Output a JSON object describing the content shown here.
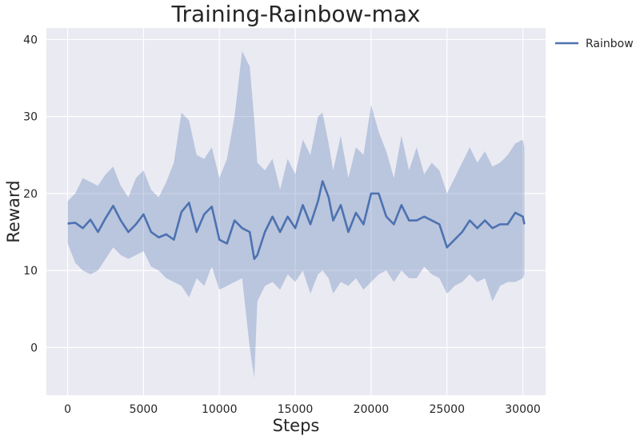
{
  "chart_data": {
    "type": "line",
    "title": "Training-Rainbow-max",
    "xlabel": "Steps",
    "ylabel": "Reward",
    "xlim": [
      -1400,
      31500
    ],
    "ylim": [
      -6.2,
      41.5
    ],
    "xticks": [
      0,
      5000,
      10000,
      15000,
      20000,
      25000,
      30000
    ],
    "yticks": [
      0,
      10,
      20,
      30,
      40
    ],
    "grid": true,
    "legend_position": "outside-top-right",
    "colors": {
      "background": "#eaeaf2",
      "grid": "#ffffff",
      "line": "#4c72b0",
      "band": "#4c72b0"
    },
    "series": [
      {
        "name": "Rainbow",
        "x": [
          0,
          500,
          1000,
          1500,
          2000,
          2500,
          3000,
          3500,
          4000,
          4500,
          5000,
          5500,
          6000,
          6500,
          7000,
          7500,
          8000,
          8500,
          9000,
          9500,
          10000,
          10500,
          11000,
          11500,
          12000,
          12300,
          12500,
          13000,
          13500,
          14000,
          14500,
          15000,
          15500,
          16000,
          16500,
          16800,
          17200,
          17500,
          18000,
          18500,
          19000,
          19500,
          20000,
          20500,
          21000,
          21500,
          22000,
          22500,
          23000,
          23500,
          24000,
          24500,
          25000,
          25500,
          26000,
          26500,
          27000,
          27500,
          28000,
          28500,
          29000,
          29500,
          30000,
          30100
        ],
        "mean": [
          16.1,
          16.2,
          15.5,
          16.6,
          15.0,
          16.8,
          18.4,
          16.5,
          15.0,
          16.0,
          17.3,
          15.0,
          14.3,
          14.7,
          14.0,
          17.6,
          18.8,
          15.0,
          17.3,
          18.3,
          14.0,
          13.5,
          16.5,
          15.5,
          15.0,
          11.5,
          12.0,
          15.0,
          17.0,
          15.0,
          17.0,
          15.5,
          18.5,
          16.0,
          19.0,
          21.6,
          19.5,
          16.5,
          18.5,
          15.0,
          17.5,
          16.0,
          20.0,
          20.0,
          17.0,
          16.0,
          18.5,
          16.5,
          16.5,
          17.0,
          16.5,
          16.0,
          13.0,
          14.0,
          15.0,
          16.5,
          15.5,
          16.5,
          15.5,
          16.0,
          16.0,
          17.5,
          17.0,
          16.0
        ],
        "lower": [
          13.5,
          11.0,
          10.0,
          9.5,
          10.0,
          11.5,
          13.0,
          12.0,
          11.5,
          12.0,
          12.5,
          10.5,
          10.0,
          9.0,
          8.5,
          8.0,
          6.5,
          9.0,
          8.0,
          10.5,
          7.5,
          8.0,
          8.5,
          9.0,
          0.0,
          -4.0,
          6.0,
          8.0,
          8.5,
          7.5,
          9.5,
          8.5,
          10.0,
          7.0,
          9.5,
          10.0,
          9.0,
          7.0,
          8.5,
          8.0,
          9.0,
          7.5,
          8.5,
          9.5,
          10.0,
          8.5,
          10.0,
          9.0,
          9.0,
          10.5,
          9.5,
          9.0,
          7.0,
          8.0,
          8.5,
          9.5,
          8.5,
          9.0,
          6.0,
          8.0,
          8.5,
          8.5,
          9.0,
          9.5
        ],
        "upper": [
          19.0,
          20.0,
          22.0,
          21.5,
          21.0,
          22.5,
          23.5,
          21.0,
          19.5,
          22.0,
          23.0,
          20.5,
          19.5,
          21.5,
          24.0,
          30.5,
          29.5,
          25.0,
          24.5,
          26.0,
          22.0,
          24.5,
          30.0,
          38.5,
          36.5,
          29.5,
          24.0,
          23.0,
          24.5,
          20.5,
          24.5,
          22.5,
          27.0,
          25.0,
          30.0,
          30.5,
          26.5,
          23.0,
          27.5,
          22.0,
          26.0,
          25.0,
          31.5,
          28.0,
          25.5,
          22.0,
          27.5,
          23.0,
          26.0,
          22.5,
          24.0,
          23.0,
          20.0,
          22.0,
          24.0,
          26.0,
          24.0,
          25.5,
          23.5,
          24.0,
          25.0,
          26.5,
          27.0,
          26.0
        ]
      }
    ]
  }
}
